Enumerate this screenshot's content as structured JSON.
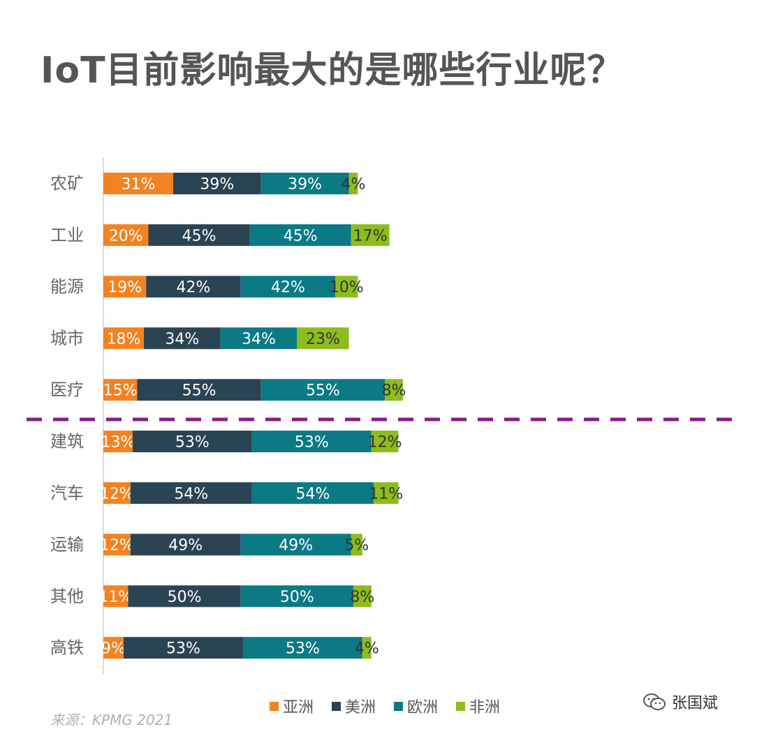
{
  "title": "IoT目前影响最大的是哪些行业呢？",
  "source": "来源：KPMG 2021",
  "watermark": "张国斌",
  "colors": {
    "asia": "#f58220",
    "america": "#2b4454",
    "europe": "#0b7a85",
    "africa": "#8cbd1c",
    "divider": "#8b1a8b"
  },
  "legend": [
    {
      "name": "亚洲",
      "color": "#f58220"
    },
    {
      "name": "美洲",
      "color": "#2b4454"
    },
    {
      "name": "欧洲",
      "color": "#0b7a85"
    },
    {
      "name": "非洲",
      "color": "#8cbd1c"
    }
  ],
  "chart_data": {
    "type": "bar",
    "orientation": "horizontal",
    "stacked": true,
    "categories": [
      "农矿",
      "工业",
      "能源",
      "城市",
      "医疗",
      "建筑",
      "汽车",
      "运输",
      "其他",
      "高铁"
    ],
    "series": [
      {
        "name": "亚洲",
        "color": "#f58220",
        "values": [
          31,
          20,
          19,
          18,
          15,
          13,
          12,
          12,
          11,
          9
        ]
      },
      {
        "name": "美洲",
        "color": "#2b4454",
        "values": [
          39,
          45,
          42,
          34,
          55,
          53,
          54,
          49,
          50,
          53
        ]
      },
      {
        "name": "欧洲",
        "color": "#0b7a85",
        "values": [
          39,
          45,
          42,
          34,
          55,
          53,
          54,
          49,
          50,
          53
        ]
      },
      {
        "name": "非洲",
        "color": "#8cbd1c",
        "values": [
          4,
          17,
          10,
          23,
          8,
          12,
          11,
          5,
          8,
          4
        ]
      }
    ],
    "value_suffix": "%",
    "divider_after_index": 4,
    "legend_position": "bottom"
  }
}
